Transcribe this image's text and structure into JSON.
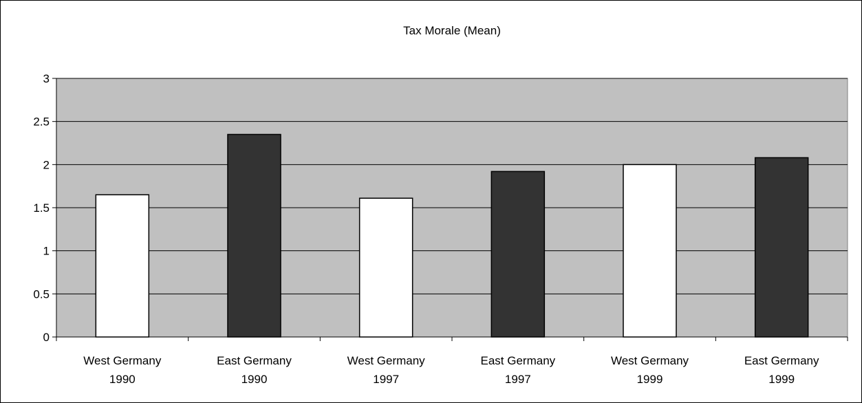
{
  "chart_data": {
    "type": "bar",
    "title": "Tax Morale (Mean)",
    "categories": [
      [
        "West Germany",
        "1990"
      ],
      [
        "East Germany",
        "1990"
      ],
      [
        "West Germany",
        "1997"
      ],
      [
        "East Germany",
        "1997"
      ],
      [
        "West Germany",
        "1999"
      ],
      [
        "East Germany",
        "1999"
      ]
    ],
    "values": [
      1.65,
      2.35,
      1.61,
      1.92,
      2.0,
      2.08
    ],
    "bar_colors": [
      "#ffffff",
      "#333333",
      "#ffffff",
      "#333333",
      "#ffffff",
      "#333333"
    ],
    "ylim": [
      0,
      3
    ],
    "yticks": [
      "0",
      "0.5",
      "1",
      "1.5",
      "2",
      "2.5",
      "3"
    ],
    "ytick_values": [
      0,
      0.5,
      1,
      1.5,
      2,
      2.5,
      3
    ],
    "grid": true,
    "legend": "none",
    "plot_background": "#c0c0c0"
  }
}
